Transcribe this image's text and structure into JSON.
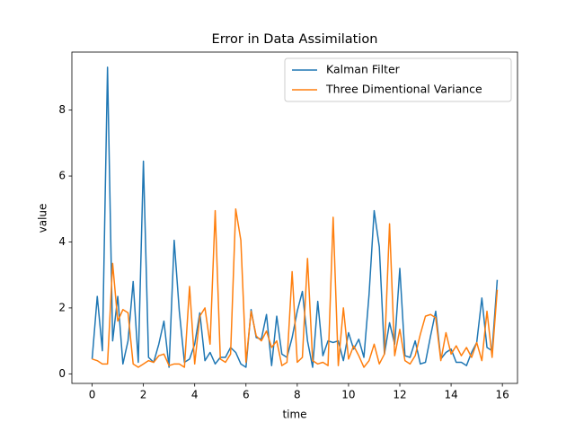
{
  "chart_data": {
    "type": "line",
    "title": "Error in Data Assimilation",
    "x_label": "time",
    "y_label": "value",
    "x": [
      0,
      0.2,
      0.4,
      0.6,
      0.8,
      1.0,
      1.2,
      1.4,
      1.6,
      1.8,
      2.0,
      2.2,
      2.4,
      2.6,
      2.8,
      3.0,
      3.2,
      3.4,
      3.6,
      3.8,
      4.0,
      4.2,
      4.4,
      4.6,
      4.8,
      5.0,
      5.2,
      5.4,
      5.6,
      5.8,
      6.0,
      6.2,
      6.4,
      6.6,
      6.8,
      7.0,
      7.2,
      7.4,
      7.6,
      7.8,
      8.0,
      8.2,
      8.4,
      8.6,
      8.8,
      9.0,
      9.2,
      9.4,
      9.6,
      9.8,
      10.0,
      10.2,
      10.4,
      10.6,
      10.8,
      11.0,
      11.2,
      11.4,
      11.6,
      11.8,
      12.0,
      12.2,
      12.4,
      12.6,
      12.8,
      13.0,
      13.2,
      13.4,
      13.6,
      13.8,
      14.0,
      14.2,
      14.4,
      14.6,
      14.8,
      15.0,
      15.2,
      15.4,
      15.6,
      15.8
    ],
    "series": [
      {
        "name": "Kalman Filter",
        "color": "#1f77b4",
        "values": [
          0.45,
          2.35,
          0.7,
          9.3,
          1.0,
          2.35,
          0.3,
          1.0,
          2.8,
          0.35,
          6.45,
          0.5,
          0.35,
          0.9,
          1.6,
          0.2,
          4.05,
          1.9,
          0.35,
          0.45,
          0.9,
          1.85,
          0.4,
          0.65,
          0.3,
          0.5,
          0.5,
          0.8,
          0.65,
          0.3,
          0.2,
          1.95,
          1.1,
          1.05,
          1.8,
          0.25,
          1.75,
          0.6,
          0.5,
          1.1,
          1.9,
          2.5,
          1.0,
          0.2,
          2.2,
          0.55,
          1.0,
          0.95,
          1.0,
          0.4,
          1.25,
          0.75,
          1.05,
          0.5,
          2.4,
          4.95,
          3.85,
          0.6,
          1.55,
          0.9,
          3.2,
          0.55,
          0.5,
          1.0,
          0.3,
          0.35,
          1.15,
          1.9,
          0.45,
          0.65,
          0.75,
          0.35,
          0.35,
          0.25,
          0.65,
          0.95,
          2.3,
          0.8,
          0.7,
          2.85
        ]
      },
      {
        "name": "Three Dimentional Variance",
        "color": "#ff7f0e",
        "values": [
          0.45,
          0.4,
          0.3,
          0.3,
          3.35,
          1.6,
          1.95,
          1.85,
          0.3,
          0.2,
          0.3,
          0.4,
          0.35,
          0.55,
          0.6,
          0.25,
          0.3,
          0.3,
          0.2,
          2.65,
          0.3,
          1.75,
          2.0,
          0.9,
          4.95,
          0.45,
          0.35,
          0.6,
          5.0,
          4.05,
          0.35,
          1.9,
          1.15,
          1.0,
          1.3,
          0.8,
          1.0,
          0.25,
          0.35,
          3.1,
          0.35,
          0.5,
          3.5,
          0.4,
          0.3,
          0.35,
          0.25,
          4.75,
          0.25,
          2.0,
          0.45,
          0.85,
          0.55,
          0.2,
          0.4,
          0.9,
          0.3,
          0.6,
          4.55,
          0.55,
          1.35,
          0.4,
          0.3,
          0.55,
          1.2,
          1.75,
          1.8,
          1.7,
          0.4,
          1.25,
          0.6,
          0.85,
          0.55,
          0.8,
          0.5,
          0.95,
          0.4,
          1.9,
          0.5,
          2.55
        ]
      }
    ],
    "xlim": [
      -0.79,
      16.59
    ],
    "ylim": [
      -0.29,
      9.76
    ],
    "xticks": [
      0,
      2,
      4,
      6,
      8,
      10,
      12,
      14,
      16
    ],
    "yticks": [
      0,
      2,
      4,
      6,
      8
    ],
    "legend": "upper right"
  }
}
